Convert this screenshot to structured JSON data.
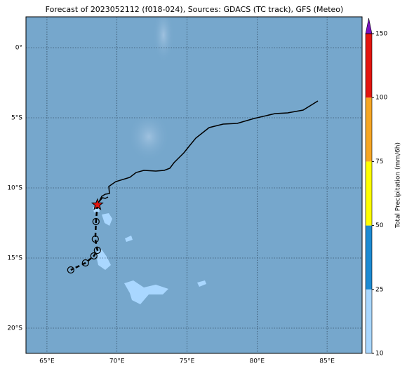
{
  "chart_data": {
    "type": "map",
    "title": "Forecast of 2023052112 (f018-024), Sources: GDACS (TC track), GFS (Meteo)",
    "xlim": [
      63.5,
      87.5
    ],
    "ylim": [
      -21.8,
      2.2
    ],
    "xticks": [
      {
        "value": 65,
        "label": "65°E"
      },
      {
        "value": 70,
        "label": "70°E"
      },
      {
        "value": 75,
        "label": "75°E"
      },
      {
        "value": 80,
        "label": "80°E"
      },
      {
        "value": 85,
        "label": "85°E"
      }
    ],
    "yticks": [
      {
        "value": 0,
        "label": "0°"
      },
      {
        "value": -5,
        "label": "5°S"
      },
      {
        "value": -10,
        "label": "10°S"
      },
      {
        "value": -15,
        "label": "15°S"
      },
      {
        "value": -20,
        "label": "20°S"
      }
    ],
    "grid": true,
    "track": {
      "lon": [
        68.6,
        68.5,
        68.45,
        68.6,
        68.35,
        67.75,
        66.7
      ],
      "lat": [
        -11.2,
        -12.4,
        -13.65,
        -14.45,
        -14.85,
        -15.35,
        -15.85
      ]
    },
    "colorbar": {
      "label": "Total Precipitation (mm/6h)",
      "ticks": [
        10,
        25,
        50,
        75,
        100,
        150
      ],
      "colors": [
        "#a9d7ff",
        "#1b8ad2",
        "#ffff00",
        "#f6a623",
        "#e3150f"
      ],
      "extend_color": "#7a10c0"
    }
  }
}
